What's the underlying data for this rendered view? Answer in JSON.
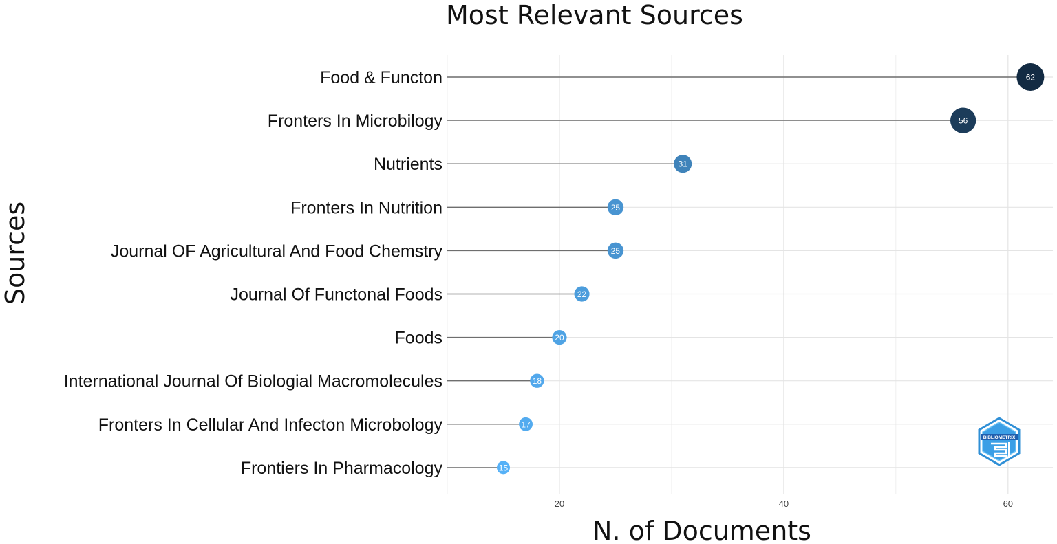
{
  "chart_data": {
    "type": "lollipop",
    "title": "Most Relevant Sources",
    "xlabel": "N. of Documents",
    "ylabel": "Sources",
    "xlim": [
      10,
      64
    ],
    "x_ticks": [
      20,
      40,
      60
    ],
    "grid": true,
    "categories": [
      "Food & Functon",
      "Fronters In Microbilogy",
      "Nutrients",
      "Fronters In Nutrition",
      "Journal OF Agricultural And Food Chemstry",
      "Journal Of Functonal Foods",
      "Foods",
      "International Journal Of Biologial Macromolecules",
      "Fronters In Cellular And Infecton Microbology",
      "Frontiers In Pharmacology"
    ],
    "values": [
      62,
      56,
      31,
      25,
      25,
      22,
      20,
      18,
      17,
      15
    ],
    "color_scale": {
      "low": "#56B1F7",
      "high": "#132B43"
    }
  },
  "logo": {
    "text": "BIBLIOMETRIX",
    "color": "#2f8fd6"
  }
}
